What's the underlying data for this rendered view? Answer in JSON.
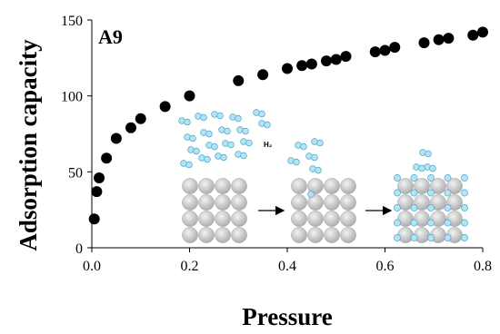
{
  "chart_data": {
    "type": "scatter",
    "annotation": "A9",
    "inset_label": "H₂",
    "x_label": "Pressure",
    "y_label": "Adsorption capacity",
    "color": "#000000",
    "x": [
      0.005,
      0.01,
      0.015,
      0.03,
      0.05,
      0.08,
      0.1,
      0.15,
      0.2,
      0.3,
      0.35,
      0.4,
      0.43,
      0.45,
      0.48,
      0.5,
      0.52,
      0.58,
      0.6,
      0.62,
      0.68,
      0.71,
      0.73,
      0.78,
      0.8
    ],
    "values": [
      19,
      37,
      46,
      59,
      72,
      79,
      85,
      93,
      100,
      110,
      114,
      118,
      120,
      121,
      123,
      124,
      126,
      129,
      130,
      132,
      135,
      137,
      138,
      140,
      142
    ],
    "xlim": [
      0,
      0.8
    ],
    "ylim": [
      0,
      150
    ],
    "xticks": [
      {
        "value": 0,
        "label": "0.0"
      },
      0.2,
      0.4,
      0.6,
      0.8
    ],
    "yticks": [
      0,
      50,
      100,
      150
    ]
  }
}
